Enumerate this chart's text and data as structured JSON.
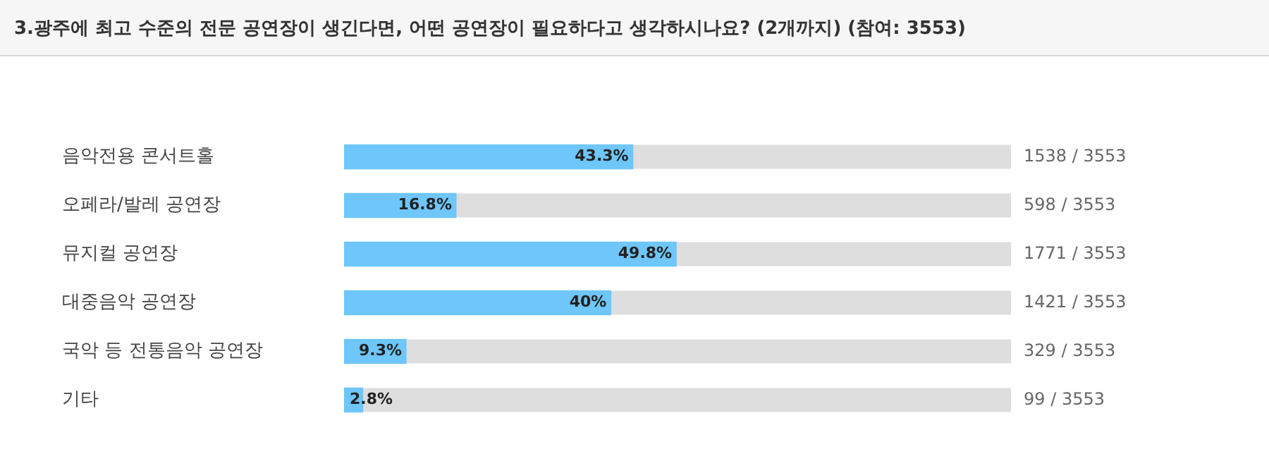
{
  "chart_data": {
    "type": "bar",
    "orientation": "horizontal",
    "title": "3.광주에 최고 수준의 전문 공연장이 생긴다면, 어떤 공연장이 필요하다고 생각하시나요? (2개까지) (참여: 3553)",
    "categories": [
      "음악전용 콘서트홀",
      "오페라/발레 공연장",
      "뮤지컬 공연장",
      "대중음악 공연장",
      "국악 등 전통음악 공연장",
      "기타"
    ],
    "values": [
      43.3,
      16.8,
      49.8,
      40,
      9.3,
      2.8
    ],
    "value_labels": [
      "43.3%",
      "16.8%",
      "49.8%",
      "40%",
      "9.3%",
      "2.8%"
    ],
    "color": "#6ec6fa",
    "xlim": [
      0,
      100
    ],
    "tick_labels": "y",
    "grid": false,
    "legend": false,
    "annotations": [
      "1538 / 3553",
      "598 / 3553",
      "1771 / 3553",
      "1421 / 3553",
      "329 / 3553",
      "99 / 3553"
    ]
  }
}
